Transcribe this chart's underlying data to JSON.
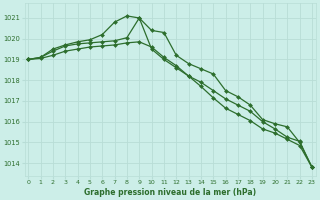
{
  "title": "Graphe pression niveau de la mer (hPa)",
  "bg_color": "#cceee8",
  "grid_color": "#b8ddd6",
  "line_color": "#2d6e2d",
  "marker_color": "#2d6e2d",
  "x_ticks": [
    0,
    1,
    2,
    3,
    4,
    5,
    6,
    7,
    8,
    9,
    10,
    11,
    12,
    13,
    14,
    15,
    16,
    17,
    18,
    19,
    20,
    21,
    22,
    23
  ],
  "y_ticks": [
    1014,
    1015,
    1016,
    1017,
    1018,
    1019,
    1020,
    1021
  ],
  "ylim": [
    1013.4,
    1021.7
  ],
  "xlim": [
    -0.3,
    23.3
  ],
  "series": [
    [
      1019.0,
      1019.1,
      1019.5,
      1019.7,
      1019.85,
      1019.95,
      1020.2,
      1020.8,
      1021.1,
      1021.0,
      1020.4,
      1020.3,
      1019.2,
      1018.8,
      1018.55,
      1018.3,
      1017.5,
      1017.2,
      1016.8,
      1016.1,
      1015.9,
      1015.75,
      1015.0,
      1013.8
    ],
    [
      1019.0,
      1019.1,
      1019.4,
      1019.65,
      1019.75,
      1019.8,
      1019.85,
      1019.9,
      1020.05,
      1021.0,
      1019.5,
      1019.0,
      1018.6,
      1018.2,
      1017.9,
      1017.5,
      1017.1,
      1016.8,
      1016.5,
      1016.0,
      1015.65,
      1015.25,
      1015.05,
      1013.8
    ],
    [
      1019.0,
      1019.05,
      1019.2,
      1019.4,
      1019.5,
      1019.6,
      1019.65,
      1019.7,
      1019.8,
      1019.85,
      1019.6,
      1019.1,
      1018.7,
      1018.2,
      1017.7,
      1017.15,
      1016.65,
      1016.35,
      1016.05,
      1015.65,
      1015.45,
      1015.15,
      1014.85,
      1013.8
    ]
  ]
}
